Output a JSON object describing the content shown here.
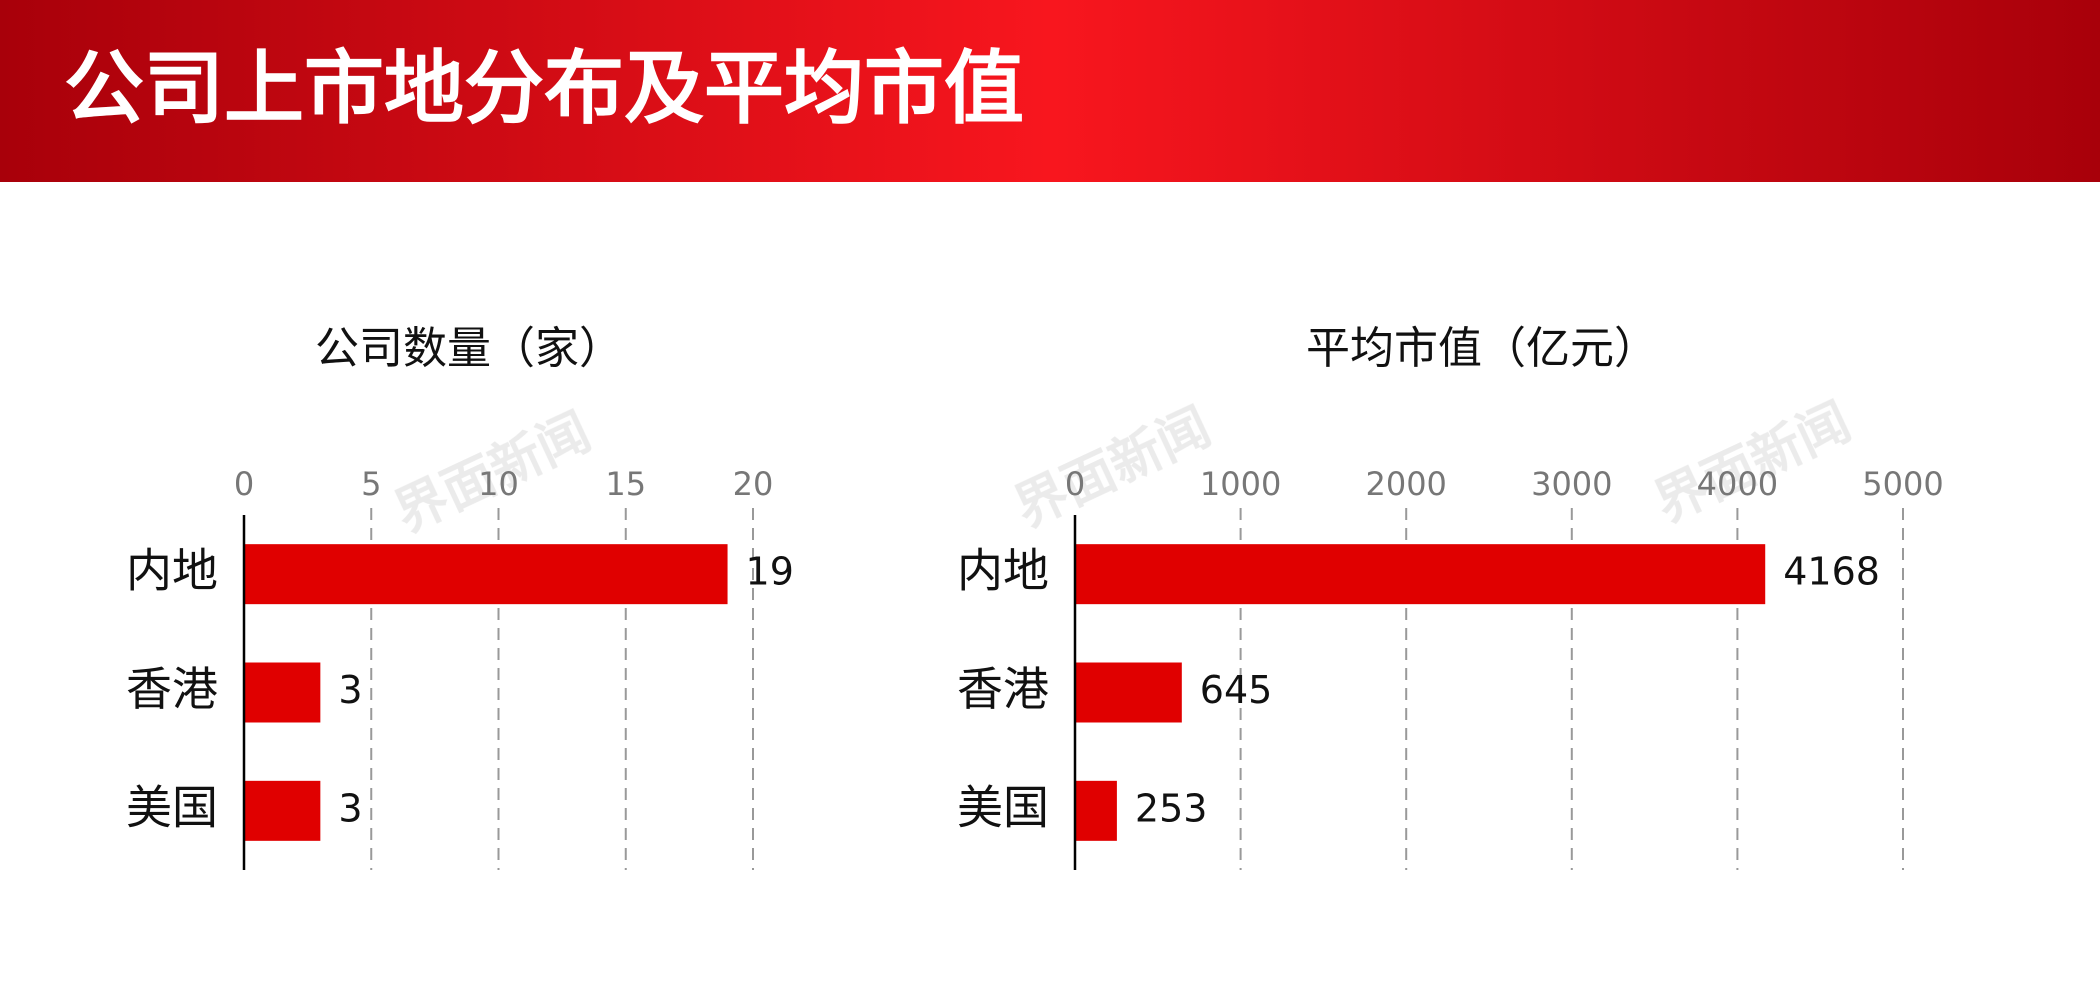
{
  "header": {
    "title": "公司上市地分布及平均市值"
  },
  "watermark": "界面新闻",
  "chart_data": [
    {
      "type": "bar",
      "orientation": "horizontal",
      "title": "公司数量（家）",
      "categories": [
        "内地",
        "香港",
        "美国"
      ],
      "values": [
        19,
        3,
        3
      ],
      "color": "#e00000",
      "xlim": [
        0,
        20
      ],
      "xticks": [
        0,
        5,
        10,
        15,
        20
      ],
      "grid": true
    },
    {
      "type": "bar",
      "orientation": "horizontal",
      "title": "平均市值（亿元）",
      "categories": [
        "内地",
        "香港",
        "美国"
      ],
      "values": [
        4168,
        645,
        253
      ],
      "color": "#e00000",
      "xlim": [
        0,
        5000
      ],
      "xticks": [
        0,
        1000,
        2000,
        3000,
        4000,
        5000
      ],
      "grid": true
    }
  ]
}
